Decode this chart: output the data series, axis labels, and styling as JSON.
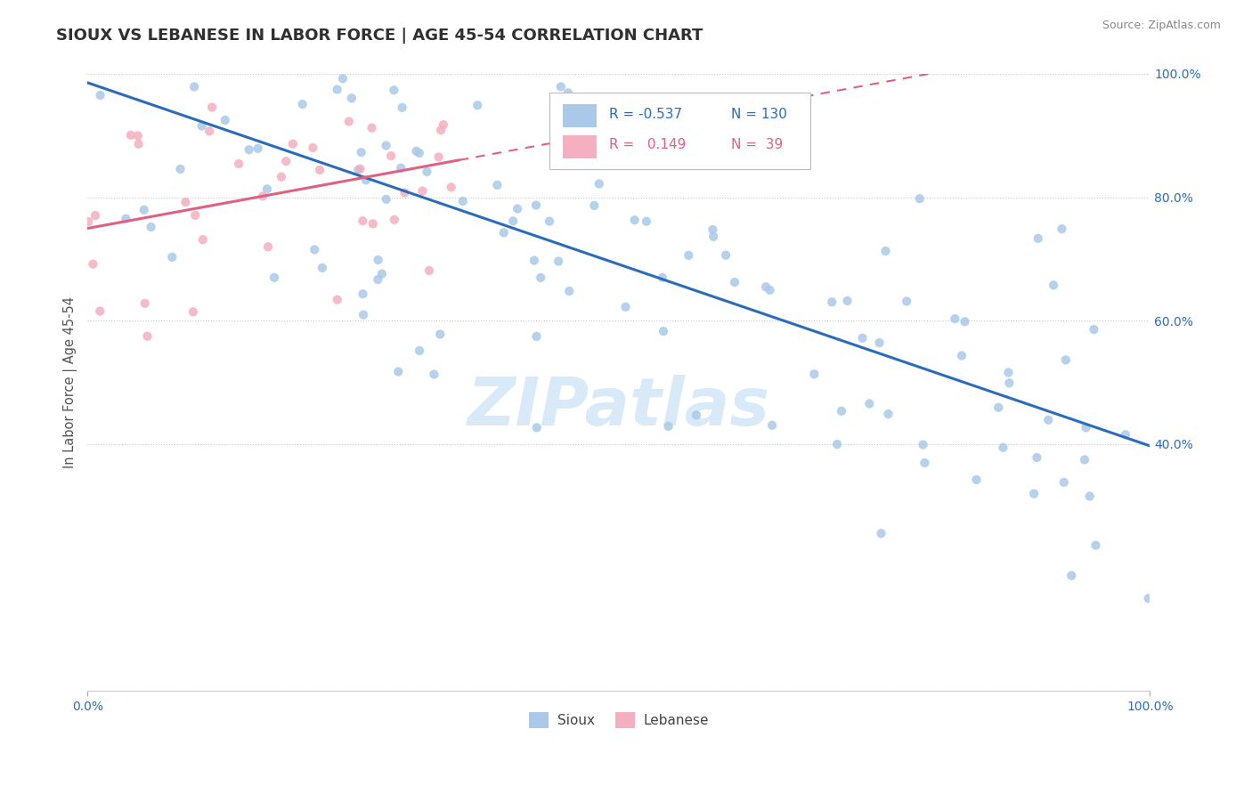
{
  "title": "SIOUX VS LEBANESE IN LABOR FORCE | AGE 45-54 CORRELATION CHART",
  "source_text": "Source: ZipAtlas.com",
  "ylabel": "In Labor Force | Age 45-54",
  "legend_r_sioux": "-0.537",
  "legend_n_sioux": "130",
  "legend_r_lebanese": "0.149",
  "legend_n_lebanese": "39",
  "sioux_color": "#aac9e8",
  "lebanese_color": "#f5afc0",
  "sioux_line_color": "#2b6cb8",
  "lebanese_line_color": "#e06080",
  "grid_color": "#c8c8c8",
  "background_color": "#ffffff",
  "watermark_color": "#d8eaf8",
  "title_color": "#303030",
  "source_color": "#888888",
  "tick_color": "#2b6cb8",
  "ylabel_color": "#555555",
  "legend_text_color": "#1a1a2e",
  "sioux_seed": 77,
  "lebanese_seed": 12
}
